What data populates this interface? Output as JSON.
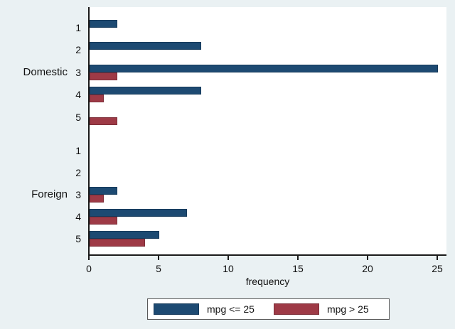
{
  "chart_data": {
    "type": "bar",
    "orientation": "horizontal",
    "xlabel": "frequency",
    "xlim": [
      0,
      25
    ],
    "xticks": [
      0,
      5,
      10,
      15,
      20,
      25
    ],
    "grid": false,
    "legend_position": "bottom",
    "categories": [
      "1",
      "2",
      "3",
      "4",
      "5"
    ],
    "groups": [
      {
        "label": "Domestic",
        "categories": [
          "1",
          "2",
          "3",
          "4",
          "5"
        ],
        "series": [
          {
            "name": "mpg <= 25",
            "values": [
              2,
              8,
              25,
              8,
              0
            ]
          },
          {
            "name": "mpg > 25",
            "values": [
              0,
              0,
              2,
              1,
              2
            ]
          }
        ]
      },
      {
        "label": "Foreign",
        "categories": [
          "1",
          "2",
          "3",
          "4",
          "5"
        ],
        "series": [
          {
            "name": "mpg <= 25",
            "values": [
              0,
              0,
              2,
              7,
              5
            ]
          },
          {
            "name": "mpg > 25",
            "values": [
              0,
              0,
              1,
              2,
              4
            ]
          }
        ]
      }
    ],
    "legend": [
      {
        "label": "mpg <= 25",
        "color": "#1d4a72"
      },
      {
        "label": "mpg > 25",
        "color": "#9e3a46"
      }
    ],
    "colors": {
      "series1": "#1d4a72",
      "series1_border": "#163a5b",
      "series2": "#9e3a46",
      "series2_border": "#7d2e38",
      "background": "#eaf1f3",
      "plot_background": "#ffffff",
      "axis": "#1a1a1a",
      "text": "#111111"
    }
  }
}
